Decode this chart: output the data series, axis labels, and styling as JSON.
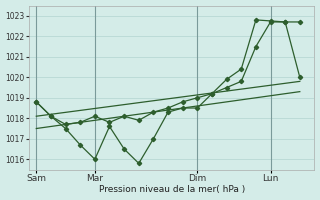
{
  "xlabel": "Pression niveau de la mer( hPa )",
  "bg_color": "#d4ece8",
  "grid_color": "#b8d8d4",
  "line_color": "#2d5e2d",
  "vline_color": "#7a9a9a",
  "ylim": [
    1015.5,
    1023.5
  ],
  "yticks": [
    1016,
    1017,
    1018,
    1019,
    1020,
    1021,
    1022,
    1023
  ],
  "xtick_labels": [
    "Sam",
    "Mar",
    "Dim",
    "Lun"
  ],
  "xtick_positions": [
    0,
    4,
    11,
    16
  ],
  "vline_positions": [
    0,
    4,
    11,
    16
  ],
  "xlim": [
    -0.5,
    19.0
  ],
  "zigzag_x": [
    0,
    1,
    2,
    3,
    4,
    5,
    6,
    7,
    8,
    9,
    10,
    11,
    12,
    13,
    14,
    15,
    16,
    17,
    18
  ],
  "zigzag_y": [
    1018.8,
    1018.1,
    1017.5,
    1016.7,
    1016.0,
    1017.6,
    1016.5,
    1015.8,
    1017.0,
    1018.3,
    1018.5,
    1018.5,
    1019.2,
    1019.9,
    1020.4,
    1022.8,
    1022.75,
    1022.7,
    1020.0
  ],
  "upper_x": [
    0,
    1,
    2,
    3,
    4,
    5,
    6,
    7,
    8,
    9,
    10,
    11,
    12,
    13,
    14,
    15,
    16,
    17,
    18
  ],
  "upper_y": [
    1018.8,
    1018.1,
    1017.7,
    1017.8,
    1018.1,
    1017.8,
    1018.1,
    1017.9,
    1018.3,
    1018.5,
    1018.8,
    1019.0,
    1019.2,
    1019.5,
    1019.8,
    1021.5,
    1022.7,
    1022.7,
    1022.7
  ],
  "trend1_x": [
    0,
    18
  ],
  "trend1_y": [
    1018.1,
    1019.8
  ],
  "trend2_x": [
    0,
    18
  ],
  "trend2_y": [
    1017.5,
    1019.3
  ],
  "figsize": [
    3.2,
    2.0
  ],
  "dpi": 100
}
